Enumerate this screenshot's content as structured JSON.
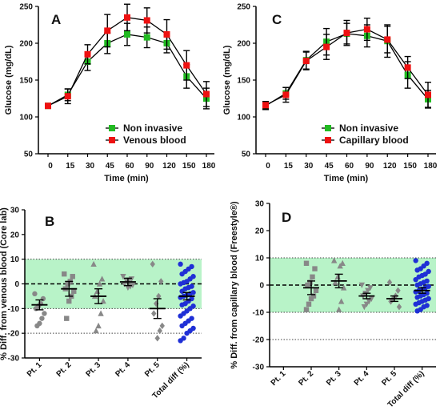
{
  "chart_data": [
    {
      "panel": "A",
      "type": "line",
      "xlabel": "Time (min)",
      "ylabel": "Glucose (mg/dL)",
      "categories": [
        "0",
        "15",
        "30",
        "45",
        "60",
        "90",
        "120",
        "150",
        "180"
      ],
      "ylim": [
        50,
        250
      ],
      "yticks": [
        50,
        100,
        150,
        200,
        250
      ],
      "legend_position": "bottom-center",
      "series": [
        {
          "name": "Non invasive",
          "color": "#22bb22",
          "values": [
            115,
            130,
            175,
            200,
            212,
            208,
            200,
            155,
            125
          ],
          "err": [
            3,
            8,
            12,
            14,
            15,
            14,
            13,
            16,
            14
          ]
        },
        {
          "name": "Venous blood",
          "color": "#ee1111",
          "values": [
            115,
            128,
            185,
            217,
            235,
            231,
            212,
            170,
            131
          ],
          "err": [
            3,
            10,
            13,
            22,
            18,
            17,
            20,
            20,
            17
          ]
        }
      ]
    },
    {
      "panel": "C",
      "type": "line",
      "xlabel": "Time (min)",
      "ylabel": "Glucose (mg/dL)",
      "categories": [
        "0",
        "15",
        "30",
        "45",
        "60",
        "90",
        "120",
        "150",
        "180"
      ],
      "ylim": [
        50,
        250
      ],
      "yticks": [
        50,
        100,
        150,
        200,
        250
      ],
      "legend_position": "bottom-center",
      "series": [
        {
          "name": "Non invasive",
          "color": "#22bb22",
          "values": [
            115,
            132,
            177,
            202,
            213,
            210,
            203,
            157,
            124
          ],
          "err": [
            5,
            8,
            12,
            18,
            14,
            15,
            22,
            18,
            12
          ]
        },
        {
          "name": "Capillary blood",
          "color": "#ee1111",
          "values": [
            116,
            130,
            176,
            195,
            214,
            219,
            205,
            167,
            130
          ],
          "err": [
            5,
            10,
            12,
            17,
            17,
            15,
            18,
            15,
            17
          ]
        }
      ]
    },
    {
      "panel": "B",
      "type": "scatter",
      "ylabel": "% Diff. from venous blood (Core lab)",
      "categories": [
        "Pt. 1",
        "Pt. 2",
        "Pt. 3",
        "Pt. 4",
        "Pt. 5",
        "Total diff (%)"
      ],
      "ylim": [
        -30,
        30
      ],
      "yticks": [
        -30,
        -20,
        -10,
        0,
        10,
        20,
        30
      ],
      "band": [
        -10,
        10
      ],
      "dotted_lines": [
        -20,
        10
      ],
      "dashed_line": 0,
      "groups": [
        {
          "category": "Pt. 1",
          "marker": "circle",
          "color": "#888888",
          "points": [
            -4,
            -6,
            -8,
            -9,
            -10,
            -12,
            -14,
            -16,
            -17
          ],
          "mean": -8.5,
          "err": 2
        },
        {
          "category": "Pt. 2",
          "marker": "square",
          "color": "#888888",
          "points": [
            4,
            3,
            1,
            0,
            -2,
            -3,
            -5,
            -7,
            -14
          ],
          "mean": -2,
          "err": 3
        },
        {
          "category": "Pt. 3",
          "marker": "triangle-up",
          "color": "#888888",
          "points": [
            8,
            2,
            0,
            -3,
            -5,
            -7,
            -12,
            -17,
            -19
          ],
          "mean": -5,
          "err": 3
        },
        {
          "category": "Pt. 4",
          "marker": "triangle-down",
          "color": "#888888",
          "points": [
            3,
            2,
            1.5,
            1,
            0,
            -0.5,
            -1,
            -1.5
          ],
          "mean": 0.8,
          "err": 1.5
        },
        {
          "category": "Pt. 5",
          "marker": "diamond",
          "color": "#888888",
          "points": [
            8,
            1,
            -5,
            -8,
            -12,
            -17,
            -19,
            -22
          ],
          "mean": -10,
          "err": 4
        },
        {
          "category": "Total diff (%)",
          "marker": "circle",
          "color": "#1f2fd6",
          "points": [
            8,
            7,
            6,
            5,
            4,
            3,
            2,
            1,
            0.5,
            0,
            -1,
            -1.5,
            -2,
            -3,
            -3.5,
            -4,
            -4.5,
            -5,
            -5.5,
            -6,
            -7,
            -8,
            -8.5,
            -9,
            -10,
            -11,
            -12,
            -13,
            -14,
            -15,
            -16,
            -17,
            -18,
            -19,
            -20,
            -22,
            -23
          ],
          "mean": -5,
          "err": 1.5
        }
      ]
    },
    {
      "panel": "D",
      "type": "scatter",
      "ylabel": "% Diff. from capillary blood (Freestyle®)",
      "categories": [
        "Pt. 1",
        "Pt. 2",
        "Pt. 3",
        "Pt. 4",
        "Pt. 5",
        "Total diff (%)"
      ],
      "ylim": [
        -30,
        30
      ],
      "yticks": [
        -30,
        -20,
        -10,
        0,
        10,
        20,
        30
      ],
      "band": [
        -10,
        10
      ],
      "dotted_lines": [
        -20,
        10
      ],
      "dashed_line": 0,
      "groups": [
        {
          "category": "Pt. 2",
          "marker": "square",
          "color": "#888888",
          "points": [
            8,
            6,
            3,
            1,
            0,
            -2,
            -4,
            -5,
            -7,
            -9
          ],
          "mean": -1,
          "err": 2.5
        },
        {
          "category": "Pt. 3",
          "marker": "triangle-up",
          "color": "#888888",
          "points": [
            9,
            8,
            7,
            3,
            1,
            -1,
            -6,
            -9
          ],
          "mean": 1.5,
          "err": 2.5
        },
        {
          "category": "Pt. 4",
          "marker": "triangle-down",
          "color": "#888888",
          "points": [
            0,
            -1,
            -2,
            -3,
            -4,
            -5,
            -6,
            -7,
            -8
          ],
          "mean": -4,
          "err": 1
        },
        {
          "category": "Pt. 5",
          "marker": "diamond",
          "color": "#888888",
          "points": [
            1,
            -2,
            -4,
            -5,
            -6,
            -8
          ],
          "mean": -5,
          "err": 1
        },
        {
          "category": "Total diff (%)",
          "marker": "circle",
          "color": "#1f2fd6",
          "points": [
            9,
            8,
            7,
            6,
            5.5,
            5,
            4,
            3.5,
            3,
            2,
            1.5,
            1,
            0.5,
            0,
            -0.5,
            -1,
            -1.5,
            -2,
            -2.5,
            -3,
            -3.5,
            -4,
            -4.5,
            -5,
            -5.5,
            -6,
            -6.5,
            -7,
            -7.5,
            -8,
            -9,
            -9.5
          ],
          "mean": -2,
          "err": 1
        }
      ]
    }
  ]
}
